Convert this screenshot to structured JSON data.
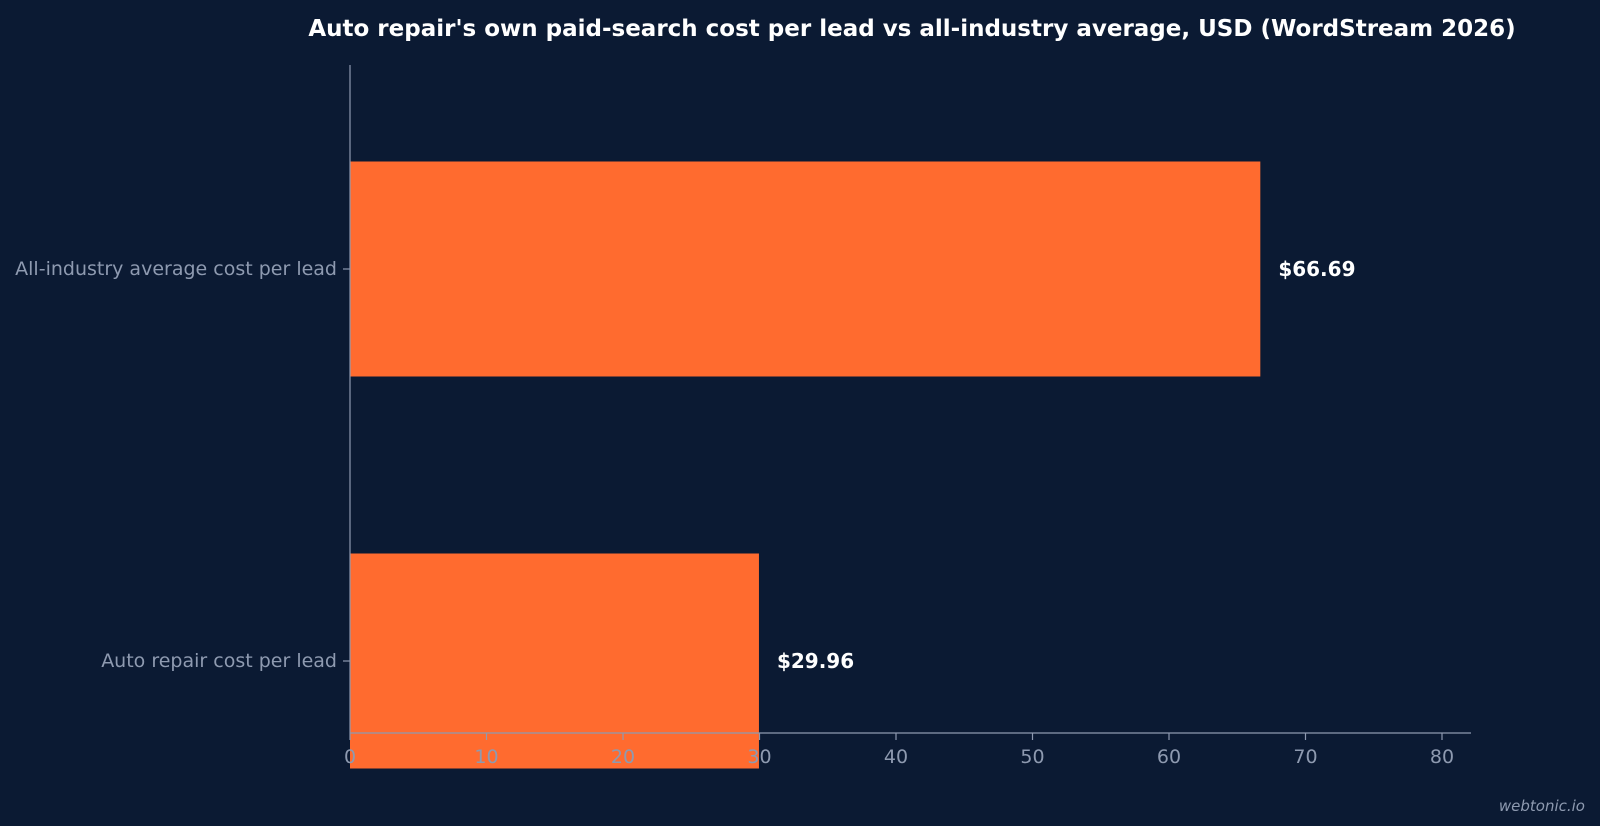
{
  "chart_data": {
    "type": "bar",
    "orientation": "horizontal",
    "title": "Auto repair's own paid-search cost per lead vs all-industry average, USD (WordStream 2026)",
    "categories": [
      "All-industry average cost per lead",
      "Auto repair cost per lead"
    ],
    "values": [
      66.69,
      29.96
    ],
    "value_labels": [
      "$66.69",
      "$29.96"
    ],
    "x_ticks": [
      "0",
      "10",
      "20",
      "30",
      "40",
      "50",
      "60",
      "70",
      "80"
    ],
    "xlim": [
      0,
      82
    ],
    "xlabel": "",
    "ylabel": "",
    "grid": false,
    "bar_color": "#ff6b2f",
    "background_color": "#0b1a33",
    "text_color": "#8e9ab0"
  },
  "footer": {
    "watermark": "webtonic.io"
  }
}
